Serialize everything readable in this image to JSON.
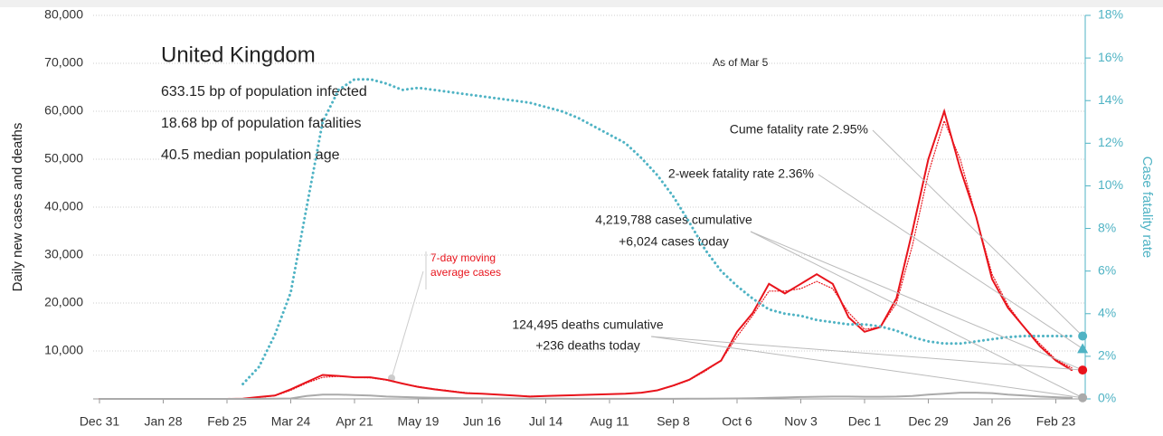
{
  "chart_data": {
    "type": "line",
    "title": "United Kingdom",
    "subtitle": [
      "633.15 bp of population infected",
      "18.68 bp of population fatalities",
      "40.5 median population age"
    ],
    "as_of": "As of Mar 5",
    "ylabel": "Daily new cases and deaths",
    "y2label": "Case fatality rate",
    "annotations": {
      "cume_fatality": "Cume fatality rate 2.95%",
      "two_week_fatality": "2-week fatality rate 2.36%",
      "cases_cumulative": "4,219,788 cases cumulative",
      "cases_today": "+6,024 cases today",
      "deaths_cumulative": "124,495 deaths cumulative",
      "deaths_today": "+236 deaths today",
      "moving_average": [
        "7-day moving",
        "average cases"
      ]
    },
    "cume_fatality_rate": 2.95,
    "two_week_fatality_rate": 2.36,
    "categories": [
      "Dec 31",
      null,
      null,
      null,
      "Jan 28",
      null,
      null,
      null,
      "Feb 25",
      null,
      null,
      null,
      "Mar 24",
      null,
      null,
      null,
      "Apr 21",
      null,
      null,
      null,
      "May 19",
      null,
      null,
      null,
      "Jun 16",
      null,
      null,
      null,
      "Jul 14",
      null,
      null,
      null,
      "Aug 11",
      null,
      null,
      null,
      "Sep 8",
      null,
      null,
      null,
      "Oct 6",
      null,
      null,
      null,
      "Nov 3",
      null,
      null,
      null,
      "Dec 1",
      null,
      null,
      null,
      "Dec 29",
      null,
      null,
      null,
      "Jan 26",
      null,
      null,
      null,
      "Feb 23",
      null
    ],
    "series": [
      {
        "name": "Daily cases",
        "color": "#e8141c",
        "style": "solid",
        "values": [
          0,
          0,
          0,
          0,
          0,
          0,
          0,
          0,
          0,
          50,
          400,
          700,
          2000,
          3500,
          5000,
          4800,
          4500,
          4500,
          4000,
          3200,
          2500,
          2000,
          1600,
          1200,
          1100,
          900,
          700,
          500,
          600,
          700,
          800,
          900,
          1000,
          1100,
          1300,
          1800,
          2800,
          4000,
          6000,
          8000,
          14000,
          18000,
          24000,
          22000,
          24000,
          26000,
          24000,
          17000,
          14000,
          15000,
          21000,
          35000,
          50000,
          60000,
          48000,
          38000,
          25000,
          19000,
          15000,
          11000,
          8000,
          6024
        ]
      },
      {
        "name": "7-day moving average cases",
        "color": "#e8141c",
        "style": "dotted",
        "values": [
          0,
          0,
          0,
          0,
          0,
          0,
          0,
          0,
          0,
          40,
          300,
          650,
          1800,
          3300,
          4500,
          4700,
          4500,
          4400,
          3900,
          3200,
          2600,
          2100,
          1700,
          1300,
          1100,
          900,
          720,
          560,
          600,
          700,
          790,
          900,
          1000,
          1100,
          1300,
          1750,
          2700,
          3900,
          5800,
          8000,
          13000,
          17500,
          22500,
          22500,
          23000,
          24500,
          23000,
          18000,
          14500,
          15000,
          20000,
          32000,
          47000,
          58000,
          50000,
          38000,
          26000,
          19500,
          15000,
          11500,
          8200,
          6500
        ]
      },
      {
        "name": "Daily deaths",
        "color": "#aaaaaa",
        "style": "solid",
        "values": [
          0,
          0,
          0,
          0,
          0,
          0,
          0,
          0,
          0,
          0,
          10,
          40,
          100,
          600,
          900,
          900,
          800,
          700,
          500,
          400,
          300,
          250,
          200,
          150,
          120,
          100,
          70,
          50,
          40,
          30,
          25,
          20,
          15,
          15,
          15,
          15,
          20,
          30,
          50,
          70,
          100,
          150,
          250,
          300,
          400,
          450,
          500,
          500,
          450,
          450,
          500,
          600,
          900,
          1100,
          1300,
          1300,
          1200,
          900,
          700,
          500,
          350,
          236
        ]
      },
      {
        "name": "Case fatality rate",
        "color": "#4fb3c4",
        "style": "dotted",
        "axis": "y2",
        "values": [
          null,
          null,
          null,
          null,
          null,
          null,
          null,
          null,
          null,
          0.7,
          1.5,
          3,
          5,
          9,
          13,
          14.5,
          15,
          15,
          14.8,
          14.5,
          14.6,
          14.5,
          14.4,
          14.3,
          14.2,
          14.1,
          14,
          13.9,
          13.7,
          13.5,
          13.2,
          12.8,
          12.4,
          12,
          11.3,
          10.5,
          9.5,
          8.3,
          7,
          6,
          5.3,
          4.7,
          4.2,
          4,
          3.9,
          3.7,
          3.6,
          3.5,
          3.5,
          3.4,
          3.2,
          2.9,
          2.7,
          2.6,
          2.6,
          2.7,
          2.8,
          2.9,
          2.95,
          2.95,
          2.95,
          2.95
        ]
      }
    ],
    "ylim": [
      0,
      80000
    ],
    "yticks": [
      {
        "value": 10000,
        "label": "10,000"
      },
      {
        "value": 20000,
        "label": "20,000"
      },
      {
        "value": 30000,
        "label": "30,000"
      },
      {
        "value": 40000,
        "label": "40,000"
      },
      {
        "value": 50000,
        "label": "50,000"
      },
      {
        "value": 60000,
        "label": "60,000"
      },
      {
        "value": 70000,
        "label": "70,000"
      },
      {
        "value": 80000,
        "label": "80,000"
      }
    ],
    "y2lim": [
      0,
      18
    ],
    "y2ticks": [
      {
        "value": 0,
        "label": "0%"
      },
      {
        "value": 2,
        "label": "2%"
      },
      {
        "value": 4,
        "label": "4%"
      },
      {
        "value": 6,
        "label": "6%"
      },
      {
        "value": 8,
        "label": "8%"
      },
      {
        "value": 10,
        "label": "10%"
      },
      {
        "value": 12,
        "label": "12%"
      },
      {
        "value": 14,
        "label": "14%"
      },
      {
        "value": 16,
        "label": "16%"
      },
      {
        "value": 18,
        "label": "18%"
      }
    ],
    "grid": true
  }
}
